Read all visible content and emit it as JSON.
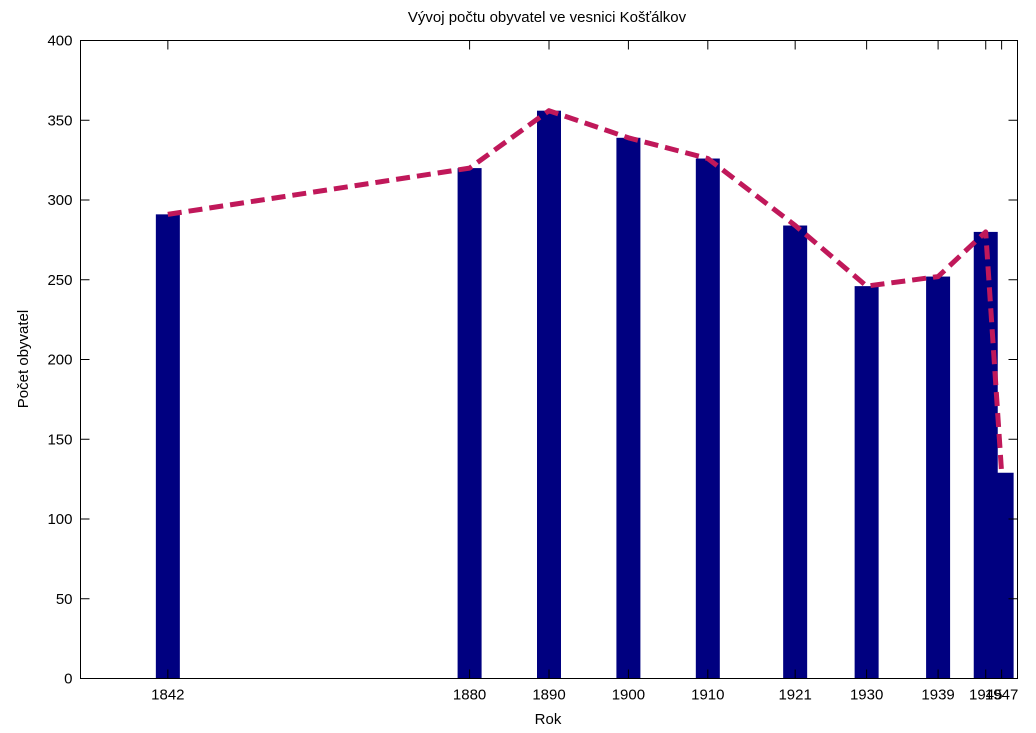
{
  "chart_data": {
    "type": "bar",
    "title": "Vývoj počtu obyvatel ve vesnici Košťálkov",
    "xlabel": "Rok",
    "ylabel": "Počet obyvatel",
    "x": [
      1842,
      1880,
      1890,
      1900,
      1910,
      1921,
      1930,
      1939,
      1945,
      1947
    ],
    "x_tick_labels": [
      "1842",
      "1880",
      "1890",
      "1900",
      "1910",
      "1921",
      "1930",
      "1939",
      "1945",
      "1947"
    ],
    "values": [
      291,
      320,
      356,
      339,
      326,
      284,
      246,
      252,
      280,
      129
    ],
    "ylim": [
      0,
      400
    ],
    "xlim": [
      1831,
      1949
    ],
    "y_ticks": [
      0,
      50,
      100,
      150,
      200,
      250,
      300,
      350,
      400
    ],
    "y_tick_labels": [
      "0",
      "50",
      "100",
      "150",
      "200",
      "250",
      "300",
      "350",
      "400"
    ],
    "grid": false,
    "bar_color": "#000080",
    "trend_line": {
      "style": "dashed",
      "color": "#c0185a",
      "values": [
        291,
        320,
        356,
        339,
        326,
        284,
        246,
        252,
        280,
        129
      ]
    }
  }
}
